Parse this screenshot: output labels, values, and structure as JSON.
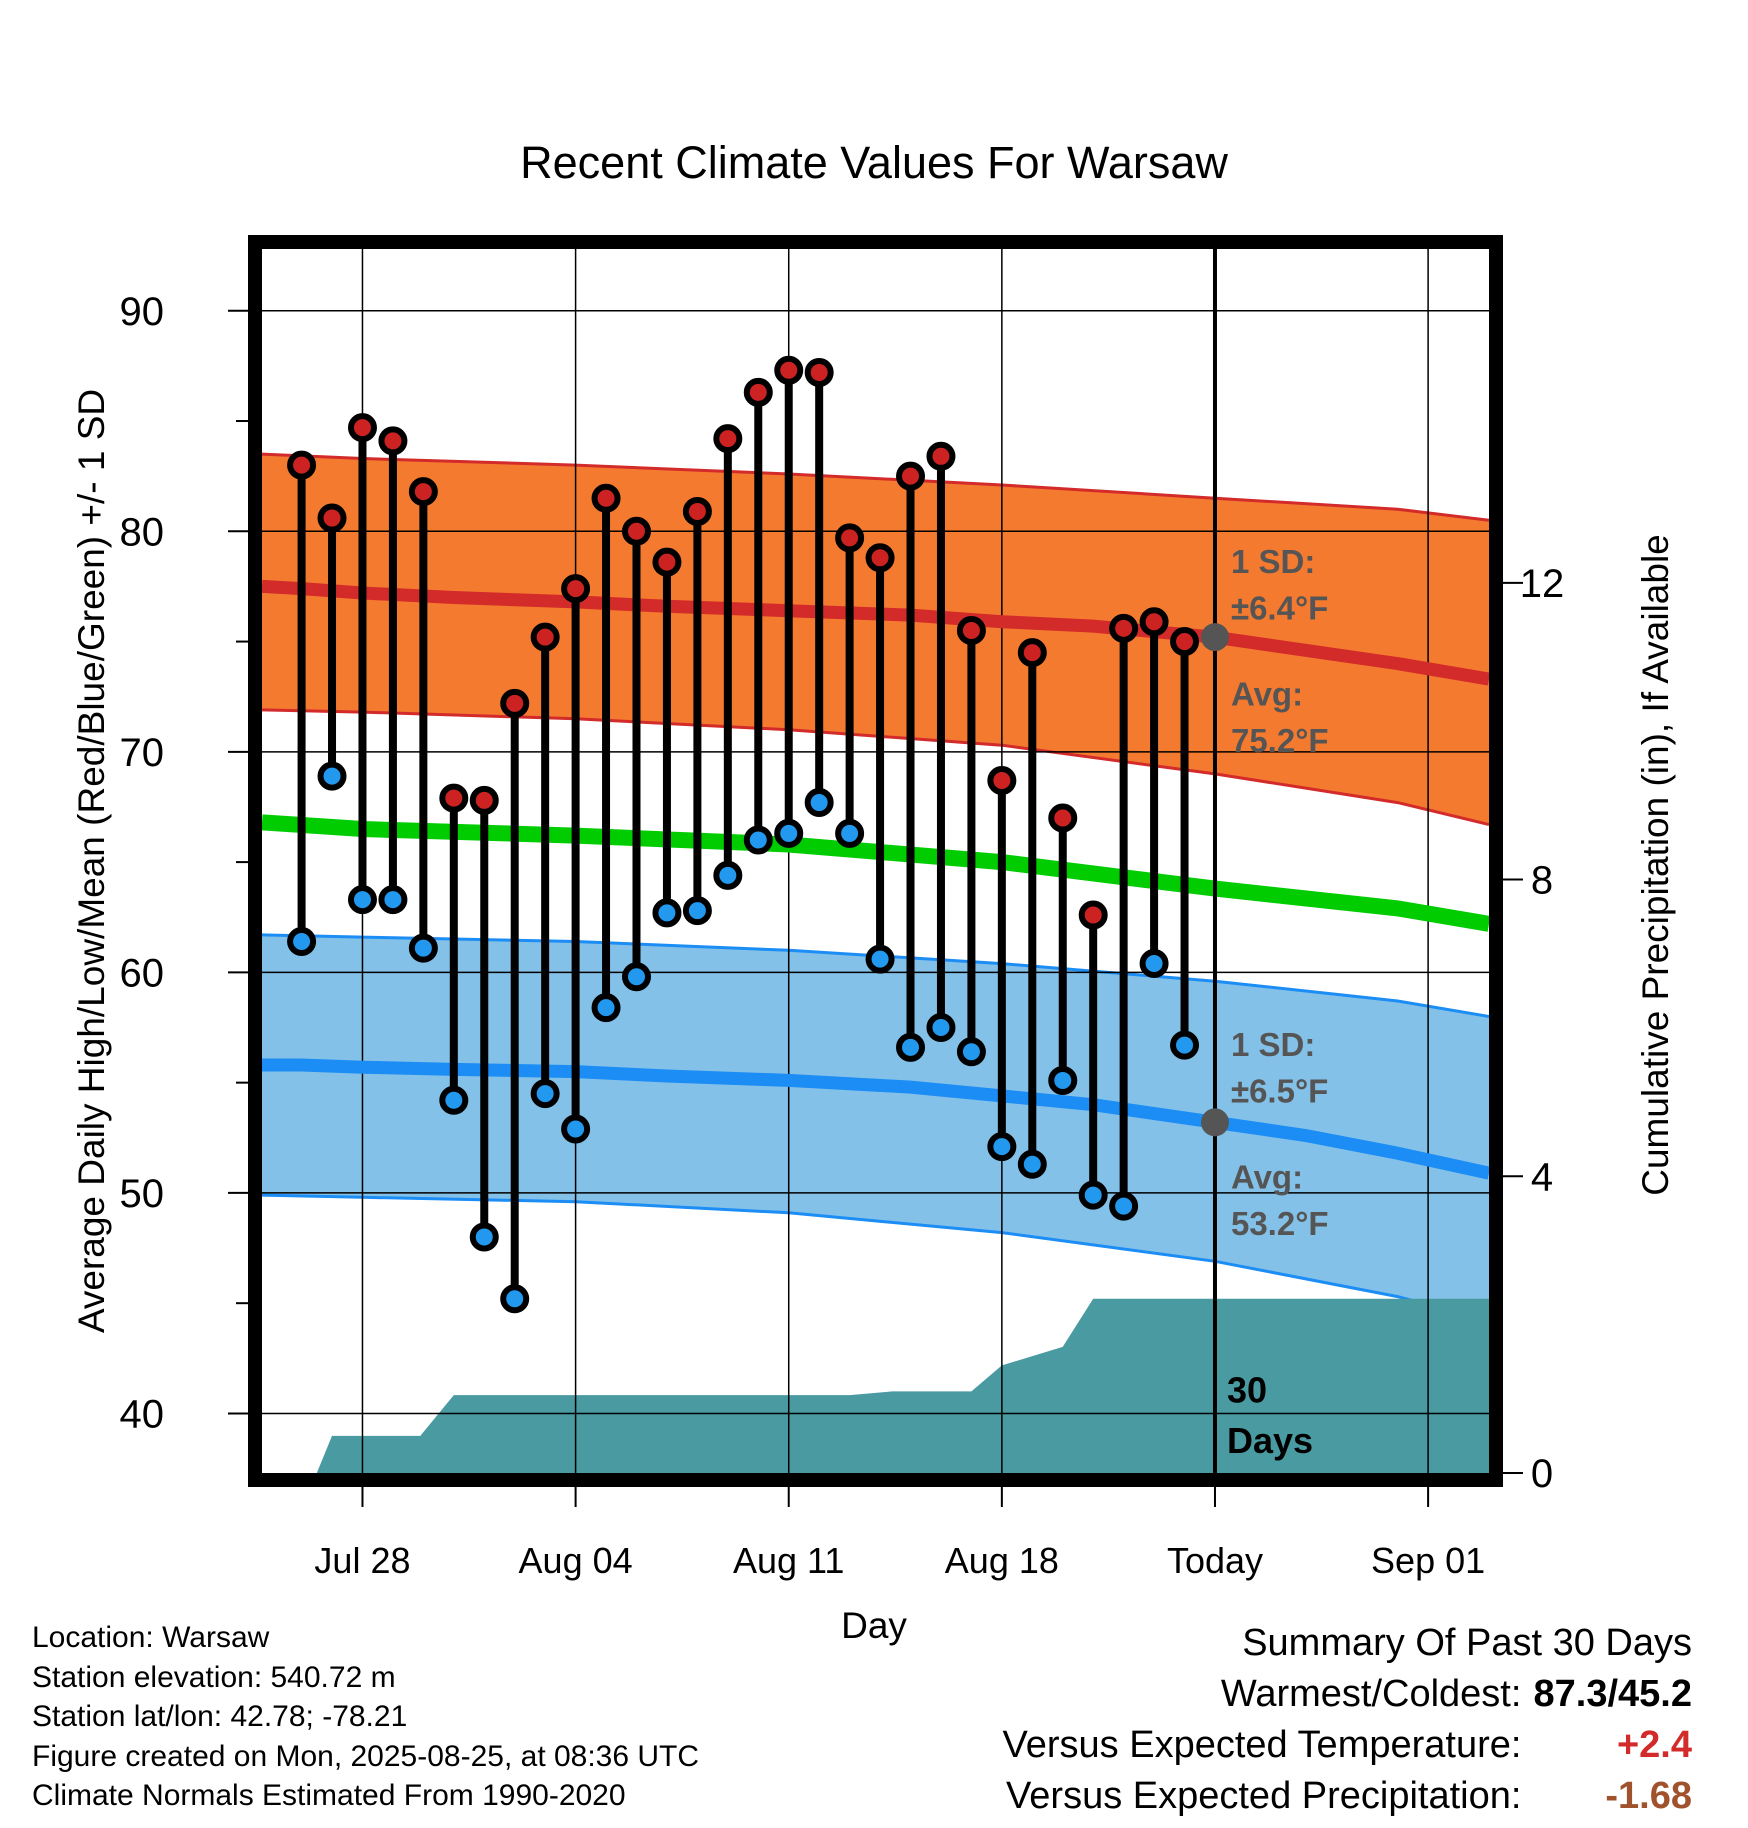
{
  "chart_data": {
    "type": "line",
    "title": "Recent Climate Values For Warsaw",
    "xlabel": "Day",
    "ylabel": "Average Daily High/Low/Mean (Red/Blue/Green) +/- 1 SD",
    "y2label": "Cumulative Precipitation (in), If Available",
    "ylim": [
      37.3,
      92.8
    ],
    "y2lim": [
      0,
      16.5
    ],
    "yticks": [
      40,
      50,
      60,
      70,
      80,
      90
    ],
    "y2ticks": [
      0,
      4,
      8,
      12
    ],
    "xlim": [
      -3.3,
      37
    ],
    "xticks": [
      {
        "day": 0,
        "label": "Jul 28"
      },
      {
        "day": 7,
        "label": "Aug 04"
      },
      {
        "day": 14,
        "label": "Aug 11"
      },
      {
        "day": 21,
        "label": "Aug 18"
      },
      {
        "day": 28,
        "label": "Today"
      },
      {
        "day": 35,
        "label": "Sep 01"
      }
    ],
    "today_day": 28,
    "grid": true,
    "series": [
      {
        "name": "High",
        "x": [
          -2,
          -1,
          0,
          1,
          2,
          3,
          4,
          5,
          6,
          7,
          8,
          9,
          10,
          11,
          12,
          13,
          14,
          15,
          16,
          17,
          18,
          19,
          20,
          21,
          22,
          23,
          24,
          25,
          26,
          27
        ],
        "values": [
          83,
          80.6,
          84.7,
          84.1,
          81.8,
          67.9,
          67.8,
          72.2,
          75.2,
          77.4,
          81.5,
          80,
          78.6,
          80.9,
          84.2,
          86.3,
          87.3,
          87.2,
          79.7,
          78.8,
          82.5,
          83.4,
          75.5,
          68.7,
          74.5,
          67,
          62.6,
          75.6,
          75.9,
          75
        ]
      },
      {
        "name": "Low",
        "x": [
          -2,
          -1,
          0,
          1,
          2,
          3,
          4,
          5,
          6,
          7,
          8,
          9,
          10,
          11,
          12,
          13,
          14,
          15,
          16,
          17,
          18,
          19,
          20,
          21,
          22,
          23,
          24,
          25,
          26,
          27
        ],
        "values": [
          61.4,
          68.9,
          63.3,
          63.3,
          61.1,
          54.2,
          48,
          45.2,
          54.5,
          52.9,
          58.4,
          59.8,
          62.7,
          62.8,
          64.4,
          66,
          66.3,
          67.7,
          66.3,
          60.6,
          56.6,
          57.5,
          56.4,
          52.1,
          51.3,
          55.1,
          49.9,
          49.4,
          60.4,
          56.7
        ]
      },
      {
        "name": "Normal High",
        "x": [
          -3.3,
          -2,
          0,
          3,
          7,
          10,
          14,
          18,
          21,
          24,
          28,
          31,
          34,
          37
        ],
        "values": [
          77.5,
          77.4,
          77.2,
          77,
          76.8,
          76.6,
          76.4,
          76.2,
          75.9,
          75.7,
          75.2,
          74.6,
          74,
          73.3
        ]
      },
      {
        "name": "Normal Low",
        "x": [
          -3.3,
          -2,
          0,
          3,
          7,
          10,
          14,
          18,
          21,
          24,
          28,
          31,
          34,
          37
        ],
        "values": [
          55.8,
          55.8,
          55.7,
          55.6,
          55.5,
          55.3,
          55.1,
          54.8,
          54.4,
          54,
          53.2,
          52.6,
          51.8,
          50.9
        ]
      },
      {
        "name": "Normal Mean",
        "x": [
          -3.3,
          0,
          7,
          14,
          21,
          28,
          34,
          37
        ],
        "values": [
          66.8,
          66.5,
          66.2,
          65.8,
          65,
          63.8,
          62.9,
          62.2
        ]
      },
      {
        "name": "High +1 SD",
        "x": [
          -3.3,
          0,
          7,
          14,
          21,
          28,
          34,
          37
        ],
        "values": [
          83.5,
          83.3,
          83,
          82.6,
          82.1,
          81.5,
          81,
          80.5
        ]
      },
      {
        "name": "High -1 SD",
        "x": [
          -3.3,
          0,
          7,
          14,
          21,
          28,
          34,
          37
        ],
        "values": [
          71.9,
          71.8,
          71.5,
          71,
          70.3,
          69,
          67.7,
          66.7
        ]
      },
      {
        "name": "Low +1 SD",
        "x": [
          -3.3,
          0,
          7,
          14,
          21,
          28,
          34,
          37
        ],
        "values": [
          61.7,
          61.6,
          61.4,
          61,
          60.4,
          59.6,
          58.7,
          58
        ]
      },
      {
        "name": "Low -1 SD",
        "x": [
          -3.3,
          0,
          7,
          14,
          21,
          28,
          34,
          37
        ],
        "values": [
          49.9,
          49.8,
          49.6,
          49.1,
          48.2,
          46.9,
          45.3,
          44.2
        ]
      },
      {
        "name": "Cumulative Precipitation",
        "x": [
          -1.5,
          -1,
          1.9,
          3,
          16,
          17.4,
          20,
          21,
          23,
          24,
          25,
          28,
          37
        ],
        "values": [
          0,
          0.5,
          0.5,
          1.05,
          1.05,
          1.1,
          1.1,
          1.45,
          1.7,
          2.35,
          2.35,
          2.35,
          2.35
        ]
      }
    ],
    "annotations": {
      "high_sd": [
        "1 SD:",
        "±6.4°F"
      ],
      "high_avg": [
        "Avg:",
        "75.2°F"
      ],
      "low_sd": [
        "1 SD:",
        "±6.5°F"
      ],
      "low_avg": [
        "Avg:",
        "53.2°F"
      ],
      "today_high_avg": 75.2,
      "today_low_avg": 53.2,
      "precip_label": [
        "30",
        "Days"
      ]
    },
    "colors": {
      "high_band": "#f47a30",
      "high_line": "#d32a2a",
      "low_band": "#84c1e8",
      "low_line": "#1b8df5",
      "mean_line": "#00cc00",
      "precip": "#4a9aa2",
      "high_marker": "#cc2222",
      "low_marker": "#2299ee",
      "annotation": "#555555"
    }
  },
  "footer": {
    "location": "Location: Warsaw",
    "elevation": "Station elevation: 540.72 m",
    "latlon": "Station lat/lon: 42.78; -78.21",
    "created": "Figure created on Mon, 2025-08-25, at 08:36 UTC",
    "normals": "Climate Normals Estimated From 1990-2020"
  },
  "summary": {
    "title": "Summary Of Past 30 Days",
    "warmest_label": "Warmest/Coldest:",
    "warmest_value": "87.3/45.2",
    "temp_label": "Versus Expected Temperature:",
    "temp_value": "+2.4",
    "temp_color": "#d32a2a",
    "precip_label": "Versus Expected Precipitation:",
    "precip_value": "-1.68",
    "precip_color": "#a0522d"
  }
}
